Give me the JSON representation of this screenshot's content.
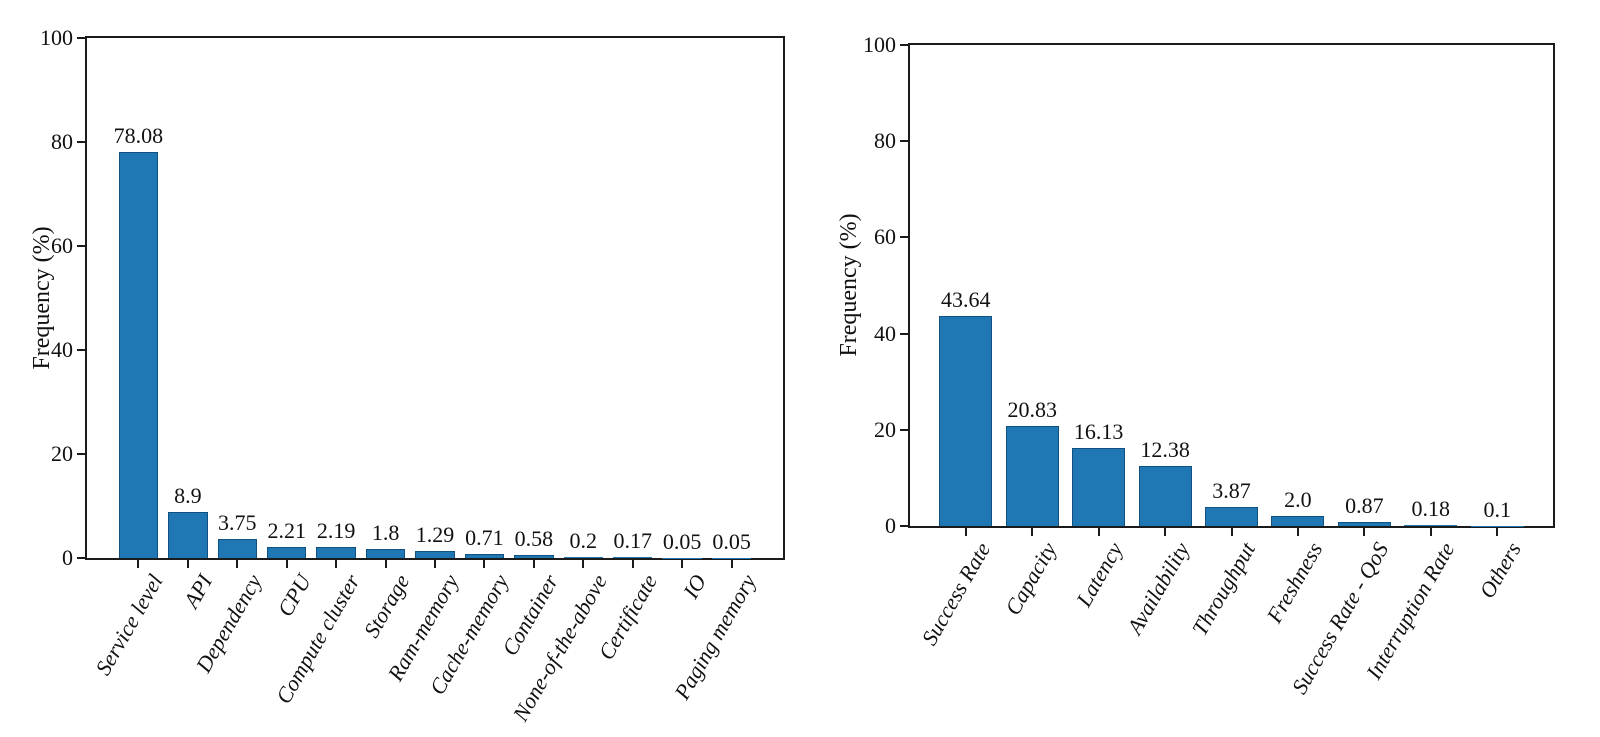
{
  "page": {
    "background": "#ffffff"
  },
  "chart_data": [
    {
      "type": "bar",
      "title": "",
      "xlabel": "",
      "ylabel": "Frequency (%)",
      "ylim": [
        0,
        100
      ],
      "yticks": [
        0,
        20,
        40,
        60,
        80,
        100
      ],
      "grid": false,
      "legend_position": "none",
      "bar_color": "#1f77b4",
      "bar_edge_color": "#10517f",
      "x_tick_label_rotation_deg": 60,
      "categories": [
        "Service level",
        "API",
        "Dependency",
        "CPU",
        "Compute cluster",
        "Storage",
        "Ram-memory",
        "Cache-memory",
        "Container",
        "None-of-the-above",
        "Certificate",
        "IO",
        "Paging memory"
      ],
      "values": [
        78.08,
        8.9,
        3.75,
        2.21,
        2.19,
        1.8,
        1.29,
        0.71,
        0.58,
        0.2,
        0.17,
        0.05,
        0.05
      ],
      "value_labels": [
        "78.08",
        "8.9",
        "3.75",
        "2.21",
        "2.19",
        "1.8",
        "1.29",
        "0.71",
        "0.58",
        "0.2",
        "0.17",
        "0.05",
        "0.05"
      ]
    },
    {
      "type": "bar",
      "title": "",
      "xlabel": "",
      "ylabel": "Frequency (%)",
      "ylim": [
        0,
        100
      ],
      "yticks": [
        0,
        20,
        40,
        60,
        80,
        100
      ],
      "grid": false,
      "legend_position": "none",
      "bar_color": "#1f77b4",
      "bar_edge_color": "#10517f",
      "x_tick_label_rotation_deg": 60,
      "categories": [
        "Success Rate",
        "Capacity",
        "Latency",
        "Availability",
        "Throughput",
        "Freshness",
        "Success Rate - QoS",
        "Interruption Rate",
        "Others"
      ],
      "values": [
        43.64,
        20.83,
        16.13,
        12.38,
        3.87,
        2.0,
        0.87,
        0.18,
        0.1
      ],
      "value_labels": [
        "43.64",
        "20.83",
        "16.13",
        "12.38",
        "3.87",
        "2.0",
        "0.87",
        "0.18",
        "0.1"
      ]
    }
  ]
}
